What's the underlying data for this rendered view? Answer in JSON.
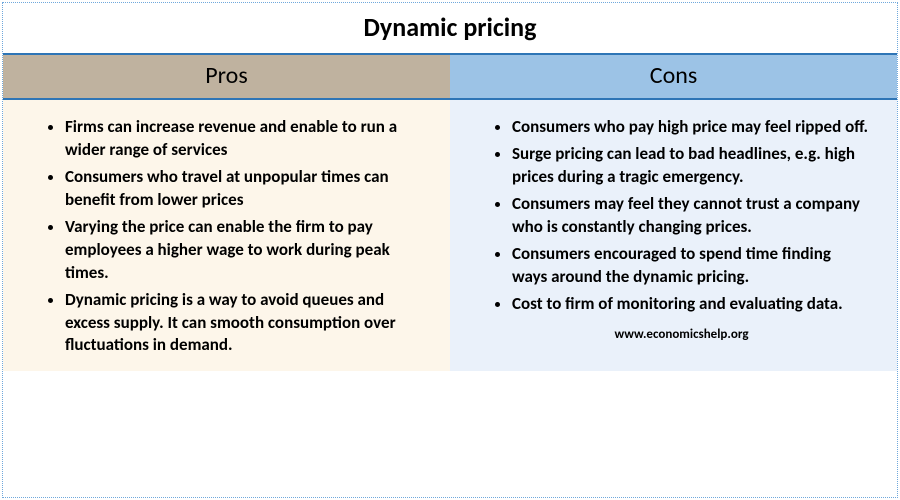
{
  "title": "Dynamic pricing",
  "attribution": "www.economicshelp.org",
  "border_color": "#6fa8dc",
  "divider_color": "#2e75b6",
  "columns": [
    {
      "key": "pros",
      "header": "Pros",
      "header_bg": "#bfb29f",
      "body_bg": "#fdf6ea",
      "items": [
        "Firms can increase revenue and enable to run a wider range of services",
        "Consumers who travel at unpopular times can benefit from lower prices",
        "Varying the price can enable the firm to pay employees a higher wage to work during peak times.",
        "Dynamic pricing is a way to avoid queues and excess supply. It can smooth consumption over fluctuations in demand."
      ]
    },
    {
      "key": "cons",
      "header": "Cons",
      "header_bg": "#9cc3e6",
      "body_bg": "#eaf1fa",
      "items": [
        "Consumers who pay high price may feel ripped off.",
        "Surge pricing can lead to bad headlines, e.g. high prices during a tragic emergency.",
        "Consumers may feel they cannot trust a company who is constantly changing prices.",
        "Consumers encouraged to spend time finding ways around the dynamic pricing.",
        "Cost to firm of monitoring and evaluating data."
      ]
    }
  ]
}
